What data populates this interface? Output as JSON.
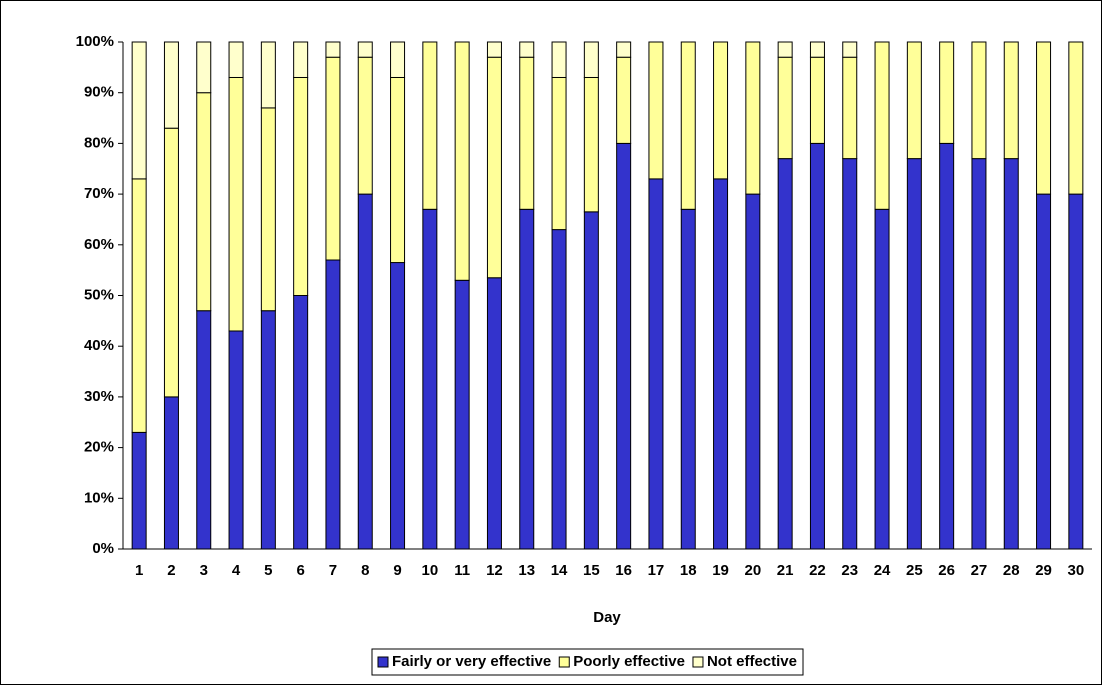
{
  "chart_data": {
    "type": "stacked_bar",
    "categories": [
      "1",
      "2",
      "3",
      "4",
      "5",
      "6",
      "7",
      "8",
      "9",
      "10",
      "11",
      "12",
      "13",
      "14",
      "15",
      "16",
      "17",
      "18",
      "19",
      "20",
      "21",
      "22",
      "23",
      "24",
      "25",
      "26",
      "27",
      "28",
      "29",
      "30"
    ],
    "xlabel": "Day",
    "series": [
      {
        "name": "Fairly or very effective",
        "color": "#3333cc",
        "values": [
          23,
          30,
          47,
          43,
          47,
          50,
          57,
          70,
          56.5,
          67,
          53,
          53.5,
          67,
          63,
          66.5,
          80,
          73,
          67,
          73,
          70,
          77,
          80,
          77,
          67,
          77,
          80,
          77,
          77,
          70,
          70
        ]
      },
      {
        "name": "Poorly effective",
        "color": "#ffff99",
        "values": [
          50,
          53,
          43,
          50,
          40,
          43,
          40,
          27,
          36.5,
          33,
          47,
          43.5,
          30,
          30,
          26.5,
          17,
          27,
          33,
          27,
          30,
          20,
          17,
          20,
          33,
          23,
          20,
          23,
          23,
          30,
          30
        ]
      },
      {
        "name": "Not effective",
        "color": "#ffffcc",
        "values": [
          27,
          17,
          10,
          7,
          13,
          7,
          3,
          3,
          7,
          0,
          0,
          3,
          3,
          7,
          7,
          3,
          0,
          0,
          0,
          0,
          3,
          3,
          3,
          0,
          0,
          0,
          0,
          0,
          0,
          0
        ]
      }
    ],
    "ylim": [
      0,
      100
    ],
    "yticks": [
      {
        "value": 0,
        "label": "0%"
      },
      {
        "value": 10,
        "label": "10%"
      },
      {
        "value": 20,
        "label": "20%"
      },
      {
        "value": 30,
        "label": "30%"
      },
      {
        "value": 40,
        "label": "40%"
      },
      {
        "value": 50,
        "label": "50%"
      },
      {
        "value": 60,
        "label": "60%"
      },
      {
        "value": 70,
        "label": "70%"
      },
      {
        "value": 80,
        "label": "80%"
      },
      {
        "value": 90,
        "label": "90%"
      },
      {
        "value": 100,
        "label": "100%"
      }
    ],
    "grid": false,
    "legend": "bottom"
  }
}
